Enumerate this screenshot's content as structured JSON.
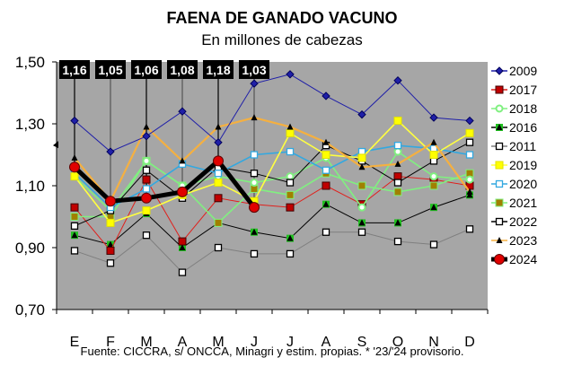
{
  "chart_data": {
    "type": "line",
    "title": "FAENA DE GANADO VACUNO",
    "subtitle": "En millones de cabezas",
    "xlabel": "",
    "ylabel": "",
    "categories": [
      "E",
      "F",
      "M",
      "A",
      "M",
      "J",
      "J",
      "A",
      "S",
      "O",
      "N",
      "D"
    ],
    "ylim": [
      0.7,
      1.5
    ],
    "yticks": [
      0.7,
      0.9,
      1.1,
      1.3,
      1.5
    ],
    "ytick_labels": [
      "0,70",
      "0,90",
      "1,10",
      "1,30",
      "1,50"
    ],
    "grid": false,
    "legend_position": "right",
    "series": [
      {
        "name": "2009",
        "color": "#1f1fa8",
        "marker": "diamond",
        "values": [
          1.31,
          1.21,
          1.26,
          1.34,
          1.24,
          1.43,
          1.46,
          1.39,
          1.33,
          1.44,
          1.32,
          1.31
        ]
      },
      {
        "name": "2017",
        "color": "#e0201c",
        "marker": "square-filled",
        "marker_fill": "#c00000",
        "values": [
          1.03,
          0.89,
          1.12,
          0.92,
          1.06,
          1.04,
          1.03,
          1.1,
          1.04,
          1.13,
          1.12,
          1.1
        ]
      },
      {
        "name": "2018",
        "color": "#80f080",
        "marker": "circle-open",
        "values": [
          1.13,
          1.02,
          1.18,
          1.1,
          1.13,
          1.11,
          1.13,
          1.19,
          1.03,
          1.21,
          1.13,
          1.12
        ]
      },
      {
        "name": "2016",
        "color": "#000000",
        "marker": "triangle-green",
        "marker_fill": "#20c020",
        "values": [
          0.94,
          0.91,
          1.01,
          0.9,
          0.98,
          0.95,
          0.93,
          1.04,
          0.98,
          0.98,
          1.03,
          1.07
        ]
      },
      {
        "name": "2011",
        "color": "#7f7f7f",
        "marker": "square-open",
        "values": [
          0.89,
          0.85,
          0.94,
          0.82,
          0.9,
          0.88,
          0.88,
          0.95,
          0.95,
          0.92,
          0.91,
          0.96
        ]
      },
      {
        "name": "2019",
        "color": "#ffff40",
        "marker": "square-filled",
        "marker_fill": "#ffff00",
        "values": [
          1.13,
          0.98,
          1.02,
          1.07,
          1.11,
          1.05,
          1.27,
          1.2,
          1.19,
          1.31,
          1.2,
          1.27
        ]
      },
      {
        "name": "2020",
        "color": "#33a8e0",
        "marker": "square-open",
        "values": [
          1.14,
          1.03,
          1.09,
          1.17,
          1.14,
          1.2,
          1.21,
          1.15,
          1.21,
          1.23,
          1.22,
          1.2
        ]
      },
      {
        "name": "2021",
        "color": "#80f080",
        "marker": "square-filled",
        "marker_fill": "#a08000",
        "values": [
          1.0,
          1.0,
          1.18,
          1.1,
          0.98,
          1.09,
          1.07,
          1.14,
          1.1,
          1.08,
          1.1,
          1.14
        ]
      },
      {
        "name": "2022",
        "color": "#000000",
        "marker": "square-open",
        "values": [
          0.97,
          1.02,
          1.15,
          1.06,
          1.16,
          1.14,
          1.11,
          1.23,
          1.18,
          1.11,
          1.18,
          1.24
        ]
      },
      {
        "name": "2023",
        "color": "#f5b040",
        "marker": "triangle",
        "marker_fill": "#000000",
        "values": [
          1.19,
          1.05,
          1.29,
          1.18,
          1.29,
          1.32,
          1.29,
          1.24,
          1.16,
          1.17,
          1.24,
          1.08
        ]
      },
      {
        "name": "2024",
        "color": "#000000",
        "marker": "circle-filled",
        "marker_fill": "#e00000",
        "values": [
          1.16,
          1.05,
          1.06,
          1.08,
          1.18,
          1.03
        ]
      }
    ],
    "annotations": [
      "1,16",
      "1,05",
      "1,06",
      "1,08",
      "1,18",
      "1,03"
    ],
    "source": "Fuente: CICCRA, s/ ONCCA, Minagri y estim. propias. * '23/'24 provisorio."
  }
}
